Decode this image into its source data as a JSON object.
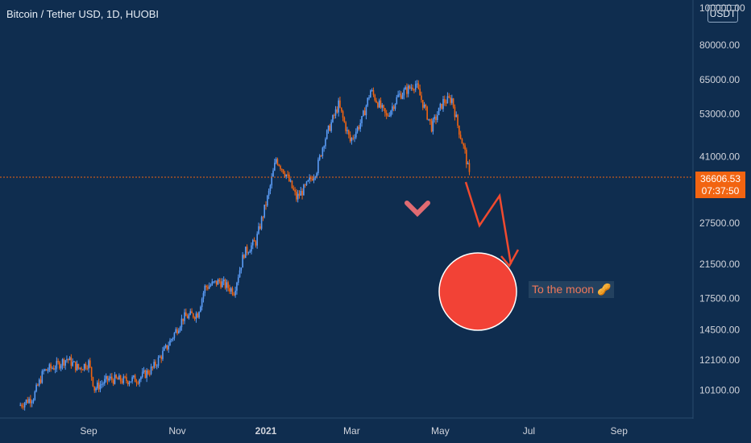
{
  "title": "Bitcoin / Tether USD, 1D, HUOBI",
  "currency": "USDT",
  "last_price": "36606.53",
  "countdown": "07:37:50",
  "note": "To the moon 🥜",
  "colors": {
    "up": "#5b9cf6",
    "down": "#f7525f",
    "background": "#0f2d4f",
    "price_line": "#f26411",
    "circle": "#f24236",
    "arrow": "#f04a2f",
    "check": "#e06b72"
  },
  "chart_data": {
    "type": "candlestick",
    "title": "Bitcoin / Tether USD, 1D, HUOBI",
    "x_tick_labels": [
      "Sep",
      "Nov",
      "2021",
      "Mar",
      "May",
      "Jul",
      "Sep"
    ],
    "y_tick_labels": [
      "100000.00",
      "80000.00",
      "65000.00",
      "53000.00",
      "41000.00",
      "27500.00",
      "21500.00",
      "17500.00",
      "14500.00",
      "12100.00",
      "10100.00"
    ],
    "y_scale": "log",
    "y_range": [
      8500,
      105000
    ],
    "series": [
      {
        "name": "",
        "points": [
          {
            "date": "2020-07-15",
            "close": 9200
          },
          {
            "date": "2020-07-25",
            "close": 9700
          },
          {
            "date": "2020-08-01",
            "close": 11300
          },
          {
            "date": "2020-08-10",
            "close": 11700
          },
          {
            "date": "2020-08-17",
            "close": 12200
          },
          {
            "date": "2020-08-25",
            "close": 11500
          },
          {
            "date": "2020-09-01",
            "close": 11900
          },
          {
            "date": "2020-09-05",
            "close": 10200
          },
          {
            "date": "2020-09-15",
            "close": 10800
          },
          {
            "date": "2020-09-25",
            "close": 10700
          },
          {
            "date": "2020-10-05",
            "close": 10800
          },
          {
            "date": "2020-10-15",
            "close": 11500
          },
          {
            "date": "2020-10-25",
            "close": 13100
          },
          {
            "date": "2020-11-05",
            "close": 15600
          },
          {
            "date": "2020-11-15",
            "close": 16000
          },
          {
            "date": "2020-11-20",
            "close": 18700
          },
          {
            "date": "2020-11-30",
            "close": 19400
          },
          {
            "date": "2020-12-10",
            "close": 18300
          },
          {
            "date": "2020-12-17",
            "close": 23000
          },
          {
            "date": "2020-12-25",
            "close": 24600
          },
          {
            "date": "2021-01-03",
            "close": 33000
          },
          {
            "date": "2021-01-08",
            "close": 40500
          },
          {
            "date": "2021-01-15",
            "close": 36800
          },
          {
            "date": "2021-01-22",
            "close": 32000
          },
          {
            "date": "2021-01-28",
            "close": 34000
          },
          {
            "date": "2021-02-05",
            "close": 38000
          },
          {
            "date": "2021-02-10",
            "close": 45000
          },
          {
            "date": "2021-02-20",
            "close": 56000
          },
          {
            "date": "2021-02-28",
            "close": 45000
          },
          {
            "date": "2021-03-08",
            "close": 51000
          },
          {
            "date": "2021-03-14",
            "close": 61000
          },
          {
            "date": "2021-03-25",
            "close": 52000
          },
          {
            "date": "2021-04-02",
            "close": 59000
          },
          {
            "date": "2021-04-14",
            "close": 63500
          },
          {
            "date": "2021-04-25",
            "close": 49000
          },
          {
            "date": "2021-05-03",
            "close": 57000
          },
          {
            "date": "2021-05-09",
            "close": 58000
          },
          {
            "date": "2021-05-13",
            "close": 49500
          },
          {
            "date": "2021-05-18",
            "close": 42000
          },
          {
            "date": "2021-05-21",
            "close": 36606.53
          }
        ]
      }
    ]
  }
}
